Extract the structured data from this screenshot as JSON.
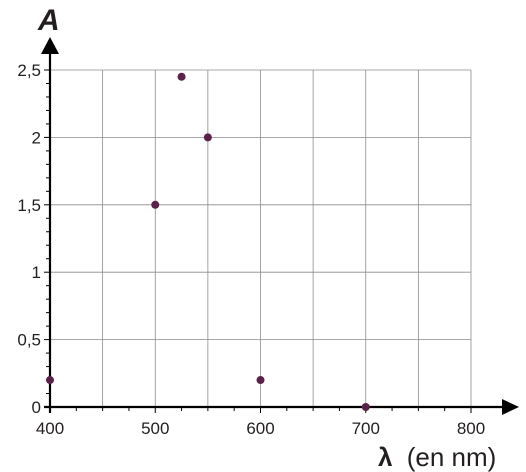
{
  "chart_data": {
    "type": "scatter",
    "ylabel": "A",
    "xlabel_symbol": "λ",
    "xlabel_unit": "(en nm)",
    "x": [
      400,
      500,
      525,
      550,
      600,
      700
    ],
    "y": [
      0.2,
      1.5,
      2.45,
      2.0,
      0.2,
      0.0
    ],
    "xlim": [
      400,
      800
    ],
    "ylim": [
      0,
      2.5
    ],
    "x_ticks": [
      400,
      500,
      600,
      700,
      800
    ],
    "x_tick_labels": [
      "400",
      "500",
      "600",
      "700",
      "800"
    ],
    "y_ticks": [
      0,
      0.5,
      1,
      1.5,
      2,
      2.5
    ],
    "y_tick_labels": [
      "0",
      "0,5",
      "1",
      "1,5",
      "2",
      "2,5"
    ],
    "grid": true,
    "marker_color": "#5a2149",
    "axis_color": "#000000"
  }
}
